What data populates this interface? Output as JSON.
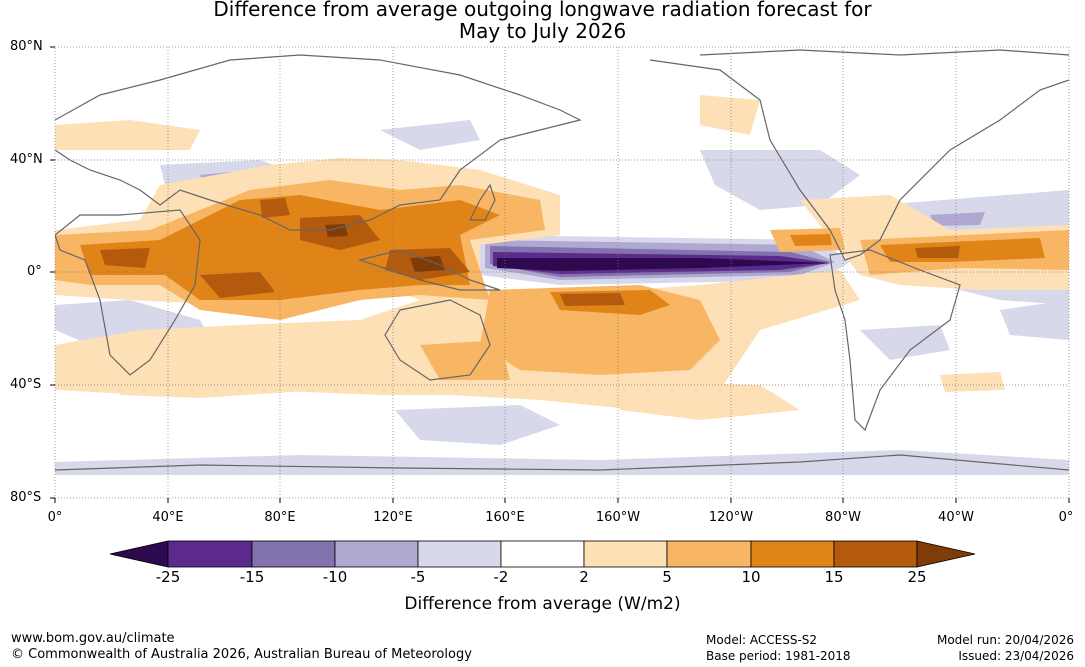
{
  "title": {
    "line1": "Difference from average outgoing longwave radiation forecast for",
    "line2": "May to July 2026"
  },
  "lat_labels": [
    "80°N",
    "40°N",
    "0°",
    "40°S",
    "80°S"
  ],
  "lon_labels": [
    "0°",
    "40°E",
    "80°E",
    "120°E",
    "160°E",
    "160°W",
    "120°W",
    "80°W",
    "40°W",
    "0°"
  ],
  "colorbar": {
    "ticks": [
      "-25",
      "-15",
      "-10",
      "-5",
      "-2",
      "2",
      "5",
      "10",
      "15",
      "25"
    ],
    "colors": [
      "#2d0a4e",
      "#5b2a8c",
      "#8272ad",
      "#b0a8d1",
      "#d8d8eb",
      "#ffffff",
      "#fde0b6",
      "#f8b664",
      "#e08418",
      "#b35a0c",
      "#7f3b08"
    ],
    "label": "Difference from average (W/m2)"
  },
  "footer": {
    "url": "www.bom.gov.au/climate",
    "copyright": "© Commonwealth of Australia 2026, Australian Bureau of Meteorology",
    "model": "Model: ACCESS-S2",
    "base_period": "Base period: 1981-2018",
    "model_run": "Model run: 20/04/2026",
    "issued": "Issued: 23/04/2026"
  }
}
